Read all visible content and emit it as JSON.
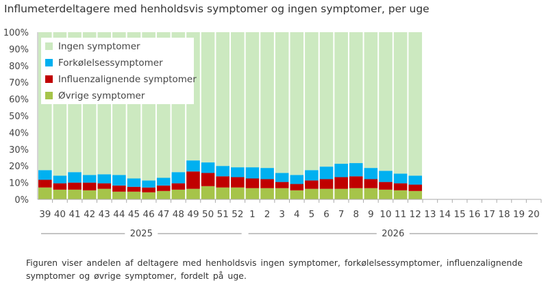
{
  "chart_data": {
    "type": "stacked-bar",
    "title": "Influmeterdeltagere med henholdsvis symptomer og ingen symptomer, per uge",
    "caption": "Figuren viser andelen af deltagere med henholdsvis ingen symptomer, forkølelsessymptomer, influenzalignende symptomer og øvrige symptomer, fordelt på uge.",
    "categories": [
      "39",
      "40",
      "41",
      "42",
      "43",
      "44",
      "45",
      "46",
      "47",
      "48",
      "49",
      "50",
      "51",
      "52",
      "1",
      "2",
      "3",
      "4",
      "5",
      "6",
      "7",
      "8",
      "9",
      "10",
      "11",
      "12",
      "13",
      "14",
      "15",
      "16",
      "17",
      "18",
      "19",
      "20"
    ],
    "year_groups": [
      {
        "label": "2025",
        "from": "39",
        "to": "52"
      },
      {
        "label": "2026",
        "from": "1",
        "to": "20"
      }
    ],
    "ylim": [
      0,
      100
    ],
    "yticks": [
      "0%",
      "10%",
      "20%",
      "30%",
      "40%",
      "50%",
      "60%",
      "70%",
      "80%",
      "90%",
      "100%"
    ],
    "legend_position": "top-left",
    "series": [
      {
        "name": "Øvrige symptomer",
        "color": "#a6c44a",
        "values": [
          7.1,
          5.8,
          5.8,
          5.4,
          6.3,
          4.6,
          4.6,
          4.2,
          5.0,
          5.8,
          6.3,
          7.9,
          7.1,
          7.1,
          6.7,
          6.7,
          6.7,
          5.4,
          6.3,
          6.3,
          6.3,
          6.7,
          6.7,
          5.8,
          5.4,
          5.0,
          null,
          null,
          null,
          null,
          null,
          null,
          null,
          null
        ]
      },
      {
        "name": "Influenzalignende symptomer",
        "color": "#c00000",
        "values": [
          4.6,
          3.8,
          4.2,
          4.6,
          3.3,
          3.7,
          2.9,
          2.9,
          3.3,
          3.8,
          10.4,
          7.9,
          6.7,
          6.2,
          5.8,
          5.4,
          3.7,
          3.8,
          5.0,
          5.8,
          7.0,
          7.1,
          5.4,
          4.6,
          4.2,
          3.8,
          null,
          null,
          null,
          null,
          null,
          null,
          null,
          null
        ]
      },
      {
        "name": "Forkølelsessymptomer",
        "color": "#00b0f0",
        "values": [
          5.8,
          4.6,
          6.3,
          4.6,
          5.4,
          6.3,
          5.0,
          4.2,
          4.6,
          6.7,
          6.6,
          6.3,
          6.2,
          5.9,
          6.7,
          6.7,
          5.4,
          5.4,
          6.2,
          7.5,
          8.0,
          7.9,
          6.7,
          6.7,
          5.8,
          5.4,
          null,
          null,
          null,
          null,
          null,
          null,
          null,
          null
        ]
      },
      {
        "name": "Ingen symptomer",
        "color": "#cce9c0",
        "values": [
          82.5,
          85.8,
          83.7,
          85.4,
          85.0,
          85.4,
          87.5,
          88.7,
          87.1,
          83.7,
          76.7,
          77.9,
          80.0,
          80.8,
          80.8,
          81.2,
          84.2,
          85.4,
          82.5,
          80.4,
          78.7,
          78.3,
          81.2,
          82.9,
          84.6,
          85.8,
          null,
          null,
          null,
          null,
          null,
          null,
          null,
          null
        ]
      }
    ]
  }
}
